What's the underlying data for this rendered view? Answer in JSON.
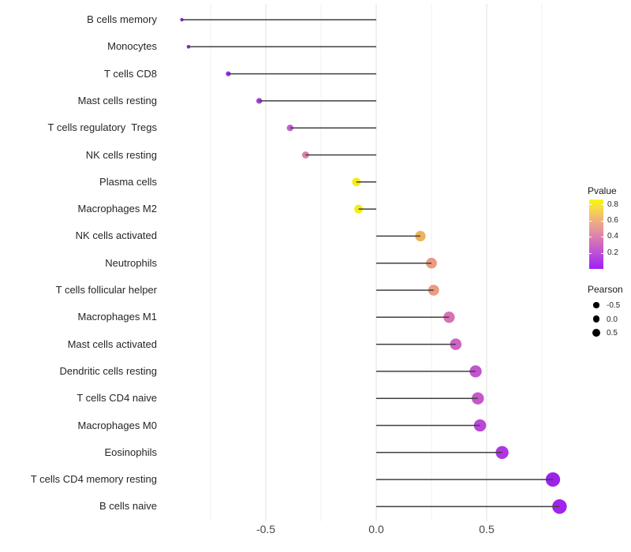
{
  "chart_data": {
    "type": "lollipop",
    "orientation": "horizontal",
    "title": "",
    "xlabel": "",
    "ylabel": "",
    "baseline": 0,
    "x_axis": {
      "range": [
        -0.96,
        0.92
      ],
      "ticks": [
        {
          "value": -0.5,
          "label": "-0.5"
        },
        {
          "value": 0.0,
          "label": "0.0"
        },
        {
          "value": 0.5,
          "label": "0.5"
        }
      ],
      "minor_gridlines": [
        -0.75,
        -0.25,
        0.25,
        0.75
      ]
    },
    "points": [
      {
        "category": "B cells memory",
        "pearson": -0.88,
        "dot_color": "#8E24E0"
      },
      {
        "category": "Monocytes",
        "pearson": -0.85,
        "dot_color": "#9126E2"
      },
      {
        "category": "T cells CD8",
        "pearson": -0.67,
        "dot_color": "#9B2BE5"
      },
      {
        "category": "Mast cells resting",
        "pearson": -0.53,
        "dot_color": "#A83CE0"
      },
      {
        "category": "T cells regulatory  Tregs",
        "pearson": -0.39,
        "dot_color": "#C263CD"
      },
      {
        "category": "NK cells resting",
        "pearson": -0.32,
        "dot_color": "#D684AB"
      },
      {
        "category": "Plasma cells",
        "pearson": -0.09,
        "dot_color": "#F4EE10"
      },
      {
        "category": "Macrophages M2",
        "pearson": -0.08,
        "dot_color": "#F4EE10"
      },
      {
        "category": "NK cells activated",
        "pearson": 0.2,
        "dot_color": "#F0B15B"
      },
      {
        "category": "Neutrophils",
        "pearson": 0.25,
        "dot_color": "#EA9B80"
      },
      {
        "category": "T cells follicular helper",
        "pearson": 0.26,
        "dot_color": "#EA9B80"
      },
      {
        "category": "Macrophages M1",
        "pearson": 0.33,
        "dot_color": "#D672B8"
      },
      {
        "category": "Mast cells activated",
        "pearson": 0.36,
        "dot_color": "#CD63C4"
      },
      {
        "category": "Dendritic cells resting",
        "pearson": 0.45,
        "dot_color": "#C255CE"
      },
      {
        "category": "T cells CD4 naive",
        "pearson": 0.46,
        "dot_color": "#C357CC"
      },
      {
        "category": "Macrophages M0",
        "pearson": 0.47,
        "dot_color": "#B948D7"
      },
      {
        "category": "Eosinophils",
        "pearson": 0.57,
        "dot_color": "#AC37E1"
      },
      {
        "category": "T cells CD4 memory resting",
        "pearson": 0.8,
        "dot_color": "#9E23EA"
      },
      {
        "category": "B cells naive",
        "pearson": 0.83,
        "dot_color": "#A024EC"
      }
    ],
    "legends": {
      "pvalue": {
        "title": "Pvalue",
        "tick_labels": [
          "0.8",
          "0.6",
          "0.4",
          "0.2"
        ],
        "tick_values": [
          0.8,
          0.6,
          0.4,
          0.2
        ],
        "bar_range": [
          0,
          0.86
        ],
        "gradient_top_to_bottom": [
          "#F9F60F",
          "#F6DE42",
          "#F3C366",
          "#EFA988",
          "#E6939F",
          "#D87CB2",
          "#CB66C4",
          "#BC4ED8",
          "#AC38E7",
          "#A21EF5"
        ]
      },
      "pearson": {
        "title": "Pearson",
        "items": [
          {
            "label": "-0.5",
            "size": -0.5
          },
          {
            "label": "0.0",
            "size": 0.0
          },
          {
            "label": "0.5",
            "size": 0.5
          }
        ]
      }
    },
    "style": {
      "background": "#ffffff",
      "stem_color": "#3f3f3f",
      "major_gridline_color": "#e4e4e4",
      "minor_gridline_color": "#f0f0f0",
      "axis_text_color": "#454545",
      "category_text_color": "#262626",
      "legend_dot_color": "#000000"
    }
  }
}
